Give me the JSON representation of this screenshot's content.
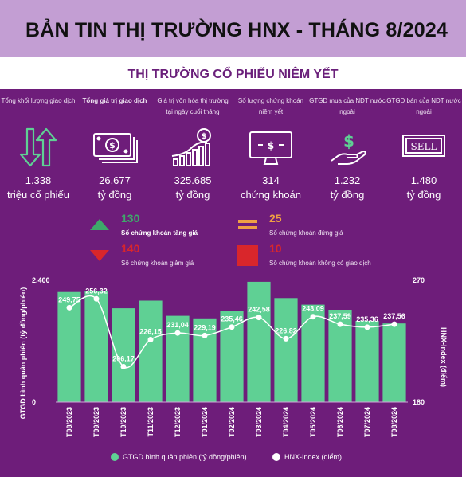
{
  "header": {
    "title": "BẢN TIN THỊ TRƯỜNG HNX - THÁNG 8/2024",
    "subtitle": "THỊ TRƯỜNG CỔ PHIẾU NIÊM YẾT"
  },
  "stats": [
    {
      "label": "Tổng khối lượng giao dịch",
      "value": "1.338",
      "unit": "triệu cổ phiếu",
      "icon": "up-down-arrows-icon"
    },
    {
      "label": "Tổng giá trị giao dịch",
      "value": "26.677",
      "unit": "tỷ đồng",
      "icon": "cash-bills-icon"
    },
    {
      "label": "Giá trị vốn hóa thị trường tại ngày cuối tháng",
      "value": "325.685",
      "unit": "tỷ đồng",
      "icon": "growth-chart-coin-icon"
    },
    {
      "label": "Số lượng chứng khoán niêm yết",
      "value": "314",
      "unit": "chứng khoán",
      "icon": "monitor-dollar-icon"
    },
    {
      "label": "GTGD mua của NĐT nước ngoài",
      "value": "1.232",
      "unit": "tỷ đồng",
      "icon": "hand-dollar-icon"
    },
    {
      "label": "GTGD bán của NĐT nước ngoài",
      "value": "1.480",
      "unit": "tỷ đồng",
      "icon": "sell-sign-icon"
    }
  ],
  "counts": {
    "up": {
      "value": "130",
      "label": "Số chứng khoán tăng giá"
    },
    "flat": {
      "value": "25",
      "label": "Số chứng khoán đứng giá"
    },
    "down": {
      "value": "140",
      "label": "Số chứng khoán giảm giá"
    },
    "none": {
      "value": "10",
      "label": "Số chứng khoán không có giao dịch"
    }
  },
  "colors": {
    "banner": "#c39ed3",
    "panel": "#6e1d7a",
    "bar": "#5fd094",
    "line": "#ffffff",
    "up": "#3ea86a",
    "down": "#d9262b",
    "flat": "#f0a044",
    "none": "#d9262b"
  },
  "chart_data": {
    "type": "bar",
    "categories": [
      "T08/2023",
      "T09/2023",
      "T10/2023",
      "T11/2023",
      "T12/2023",
      "T01/2024",
      "T02/2024",
      "T03/2024",
      "T04/2024",
      "T05/2024",
      "T06/2024",
      "T07/2024",
      "T08/2024"
    ],
    "series": [
      {
        "name": "GTGD bình quân phiên (tỷ đồng/phiên)",
        "type": "bar",
        "axis": "left",
        "values": [
          2170,
          2190,
          1850,
          2000,
          1700,
          1650,
          1790,
          2370,
          2050,
          1920,
          1820,
          1600,
          1550
        ]
      },
      {
        "name": "HNX-Index (điểm)",
        "type": "line",
        "axis": "right",
        "values": [
          249.75,
          256.32,
          206.17,
          226.15,
          231.04,
          229.19,
          235.46,
          242.58,
          226.82,
          243.09,
          237.59,
          235.36,
          237.56
        ],
        "labels": [
          "249,75",
          "256,32",
          "206,17",
          "226,15",
          "231,04",
          "229,19",
          "235,46",
          "242,58",
          "226,82",
          "243,09",
          "237,59",
          "235,36",
          "237,56"
        ]
      }
    ],
    "ylabel": "GTGD bình quân phiên (tỷ đồng/phiên)",
    "y2label": "HNX-Index (điểm)",
    "ylim": [
      0,
      2400
    ],
    "y2lim": [
      180,
      270
    ],
    "yticks": [
      "0",
      "2.400"
    ],
    "y2ticks": [
      "180",
      "270"
    ],
    "legend": "bottom"
  }
}
